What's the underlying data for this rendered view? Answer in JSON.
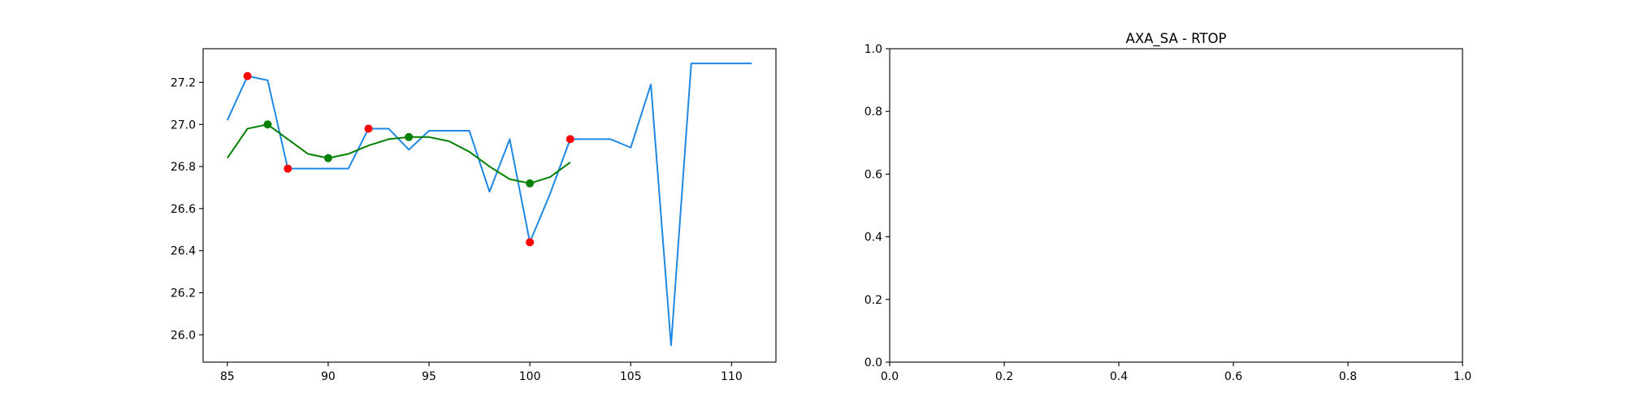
{
  "chart_data": [
    {
      "type": "line",
      "title": "",
      "xlabel": "",
      "ylabel": "",
      "xlim": [
        83.8,
        112.2
      ],
      "ylim": [
        25.87,
        27.36
      ],
      "xticks": [
        85,
        90,
        95,
        100,
        105,
        110
      ],
      "yticks": [
        26.0,
        26.2,
        26.4,
        26.6,
        26.8,
        27.0,
        27.2
      ],
      "ytick_labels": [
        "26.0",
        "26.2",
        "26.4",
        "26.6",
        "26.8",
        "27.0",
        "27.2"
      ],
      "grid": false,
      "series": [
        {
          "color": "#1e88e5",
          "x": [
            85,
            86,
            87,
            88,
            89,
            90,
            91,
            92,
            93,
            94,
            95,
            96,
            97,
            98,
            99,
            100,
            101,
            102,
            103,
            104,
            105,
            106,
            107,
            108,
            109,
            110,
            111
          ],
          "y": [
            27.02,
            27.23,
            27.21,
            26.79,
            26.79,
            26.79,
            26.79,
            26.98,
            26.98,
            26.88,
            26.97,
            26.97,
            26.97,
            26.68,
            26.93,
            26.44,
            26.67,
            26.93,
            26.93,
            26.93,
            26.89,
            27.19,
            25.95,
            27.29,
            27.29,
            27.29,
            27.29
          ]
        },
        {
          "color": "#008000",
          "x": [
            85,
            86,
            87,
            88,
            89,
            90,
            91,
            92,
            93,
            94,
            95,
            96,
            97,
            98,
            99,
            100,
            101,
            102
          ],
          "y": [
            26.84,
            26.98,
            27.0,
            26.93,
            26.86,
            26.84,
            26.86,
            26.9,
            26.93,
            26.94,
            26.94,
            26.92,
            26.87,
            26.8,
            26.74,
            26.72,
            26.75,
            26.82
          ]
        }
      ],
      "scatter": [
        {
          "color": "#ff0000",
          "x": [
            86,
            88,
            92,
            100,
            102
          ],
          "y": [
            27.23,
            26.79,
            26.98,
            26.44,
            26.93
          ]
        },
        {
          "color": "#008000",
          "x": [
            87,
            90,
            94,
            100
          ],
          "y": [
            27.0,
            26.84,
            26.94,
            26.72
          ]
        }
      ]
    },
    {
      "type": "line",
      "title": "AXA_SA - RTOP",
      "xlabel": "",
      "ylabel": "",
      "xlim": [
        0,
        1
      ],
      "ylim": [
        0,
        1
      ],
      "xticks": [
        0.0,
        0.2,
        0.4,
        0.6,
        0.8,
        1.0
      ],
      "xtick_labels": [
        "0.0",
        "0.2",
        "0.4",
        "0.6",
        "0.8",
        "1.0"
      ],
      "yticks": [
        0.0,
        0.2,
        0.4,
        0.6,
        0.8,
        1.0
      ],
      "ytick_labels": [
        "0.0",
        "0.2",
        "0.4",
        "0.6",
        "0.8",
        "1.0"
      ],
      "grid": false,
      "series": [],
      "scatter": []
    }
  ]
}
